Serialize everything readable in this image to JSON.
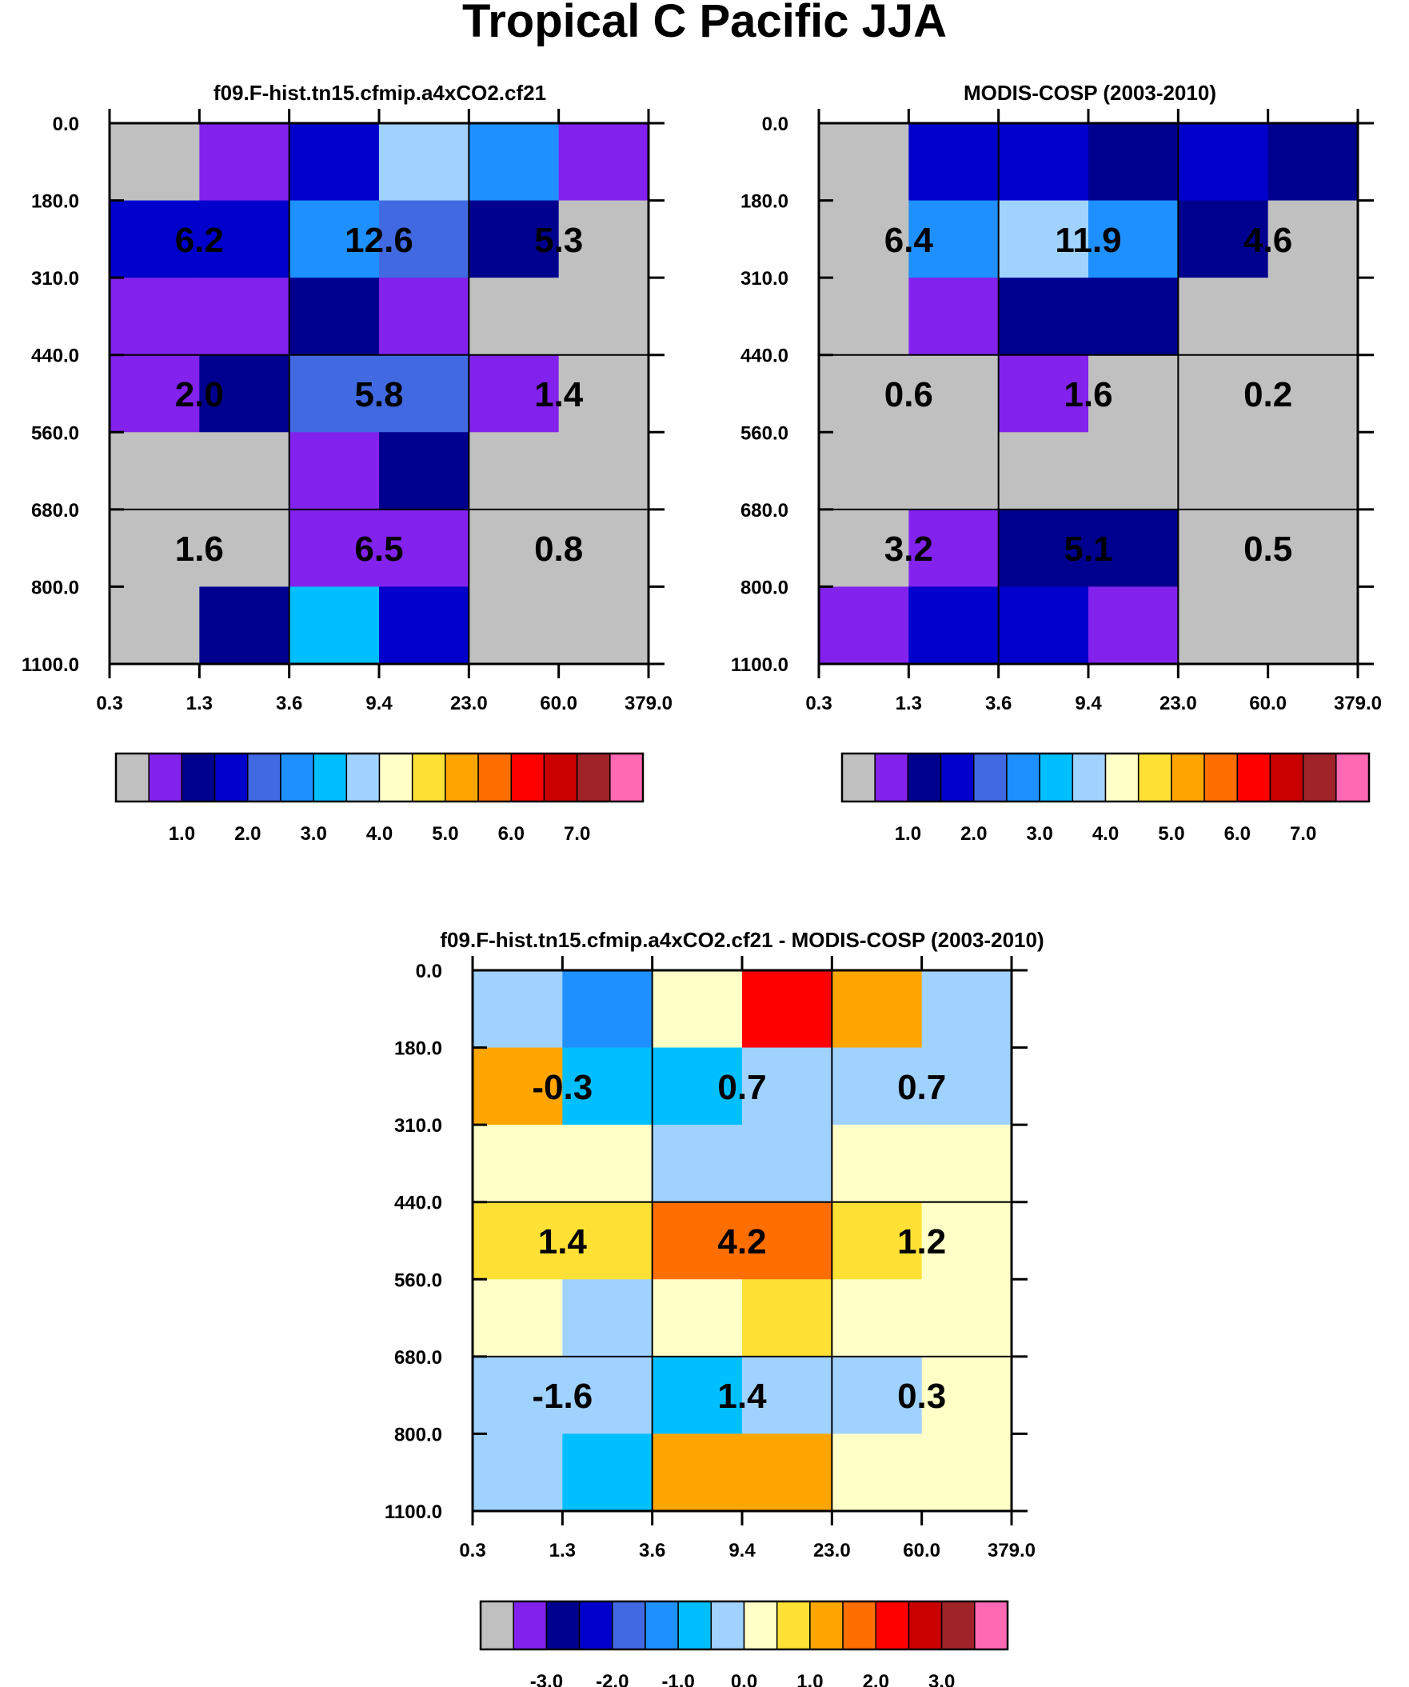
{
  "title": "Tropical C Pacific JJA",
  "colors": {
    "palette": [
      "#c0c0c0",
      "#8222ec",
      "#00008f",
      "#0000cd",
      "#4169e1",
      "#1e90ff",
      "#00bfff",
      "#a0d2ff",
      "#ffffc8",
      "#ffe135",
      "#ffa500",
      "#ff6e00",
      "#ff0000",
      "#c80000",
      "#a0232a",
      "#ff69b4"
    ],
    "grid": "#000000"
  },
  "chart_data": [
    {
      "type": "heatmap",
      "title": "f09.F-hist.tn15.cfmip.a4xCO2.cf21",
      "xlabel": "",
      "ylabel": "",
      "x_ticks": [
        "0.3",
        "1.3",
        "3.6",
        "9.4",
        "23.0",
        "60.0",
        "379.0"
      ],
      "y_ticks": [
        "0.0",
        "180.0",
        "310.0",
        "440.0",
        "560.0",
        "680.0",
        "800.0",
        "1100.0"
      ],
      "cells_color_index": [
        [
          0,
          1,
          3,
          7,
          5,
          1
        ],
        [
          3,
          3,
          5,
          4,
          2,
          0
        ],
        [
          1,
          1,
          2,
          1,
          0,
          0
        ],
        [
          1,
          2,
          4,
          4,
          1,
          0
        ],
        [
          0,
          0,
          1,
          2,
          0,
          0
        ],
        [
          0,
          0,
          1,
          1,
          0,
          0
        ],
        [
          0,
          2,
          6,
          3,
          0,
          0
        ]
      ],
      "box_values": [
        [
          "6.2",
          "12.6",
          "5.3"
        ],
        [
          "2.0",
          "5.8",
          "1.4"
        ],
        [
          "1.6",
          "6.5",
          "0.8"
        ]
      ],
      "colorbar": {
        "labels": [
          "1.0",
          "2.0",
          "3.0",
          "4.0",
          "5.0",
          "6.0",
          "7.0"
        ]
      }
    },
    {
      "type": "heatmap",
      "title": "MODIS-COSP (2003-2010)",
      "xlabel": "",
      "ylabel": "",
      "x_ticks": [
        "0.3",
        "1.3",
        "3.6",
        "9.4",
        "23.0",
        "60.0",
        "379.0"
      ],
      "y_ticks": [
        "0.0",
        "180.0",
        "310.0",
        "440.0",
        "560.0",
        "680.0",
        "800.0",
        "1100.0"
      ],
      "cells_color_index": [
        [
          0,
          3,
          3,
          2,
          3,
          2
        ],
        [
          0,
          5,
          7,
          5,
          2,
          0
        ],
        [
          0,
          1,
          2,
          2,
          0,
          0
        ],
        [
          0,
          0,
          1,
          0,
          0,
          0
        ],
        [
          0,
          0,
          0,
          0,
          0,
          0
        ],
        [
          0,
          1,
          2,
          2,
          0,
          0
        ],
        [
          1,
          3,
          3,
          1,
          0,
          0
        ]
      ],
      "box_values": [
        [
          "6.4",
          "11.9",
          "4.6"
        ],
        [
          "0.6",
          "1.6",
          "0.2"
        ],
        [
          "3.2",
          "5.1",
          "0.5"
        ]
      ],
      "colorbar": {
        "labels": [
          "1.0",
          "2.0",
          "3.0",
          "4.0",
          "5.0",
          "6.0",
          "7.0"
        ]
      }
    },
    {
      "type": "heatmap",
      "title": "f09.F-hist.tn15.cfmip.a4xCO2.cf21 - MODIS-COSP (2003-2010)",
      "xlabel": "",
      "ylabel": "",
      "x_ticks": [
        "0.3",
        "1.3",
        "3.6",
        "9.4",
        "23.0",
        "60.0",
        "379.0"
      ],
      "y_ticks": [
        "0.0",
        "180.0",
        "310.0",
        "440.0",
        "560.0",
        "680.0",
        "800.0",
        "1100.0"
      ],
      "cells_color_index": [
        [
          7,
          5,
          8,
          12,
          10,
          7
        ],
        [
          10,
          6,
          6,
          7,
          7,
          7
        ],
        [
          8,
          8,
          7,
          7,
          8,
          8
        ],
        [
          9,
          9,
          11,
          11,
          9,
          8
        ],
        [
          8,
          7,
          8,
          9,
          8,
          8
        ],
        [
          7,
          7,
          6,
          7,
          7,
          8
        ],
        [
          7,
          6,
          10,
          10,
          8,
          8
        ]
      ],
      "box_values": [
        [
          "-0.3",
          "0.7",
          "0.7"
        ],
        [
          "1.4",
          "4.2",
          "1.2"
        ],
        [
          "-1.6",
          "1.4",
          "0.3"
        ]
      ],
      "colorbar": {
        "labels": [
          "-3.0",
          "-2.0",
          "-1.0",
          "0.0",
          "1.0",
          "2.0",
          "3.0"
        ]
      }
    }
  ]
}
